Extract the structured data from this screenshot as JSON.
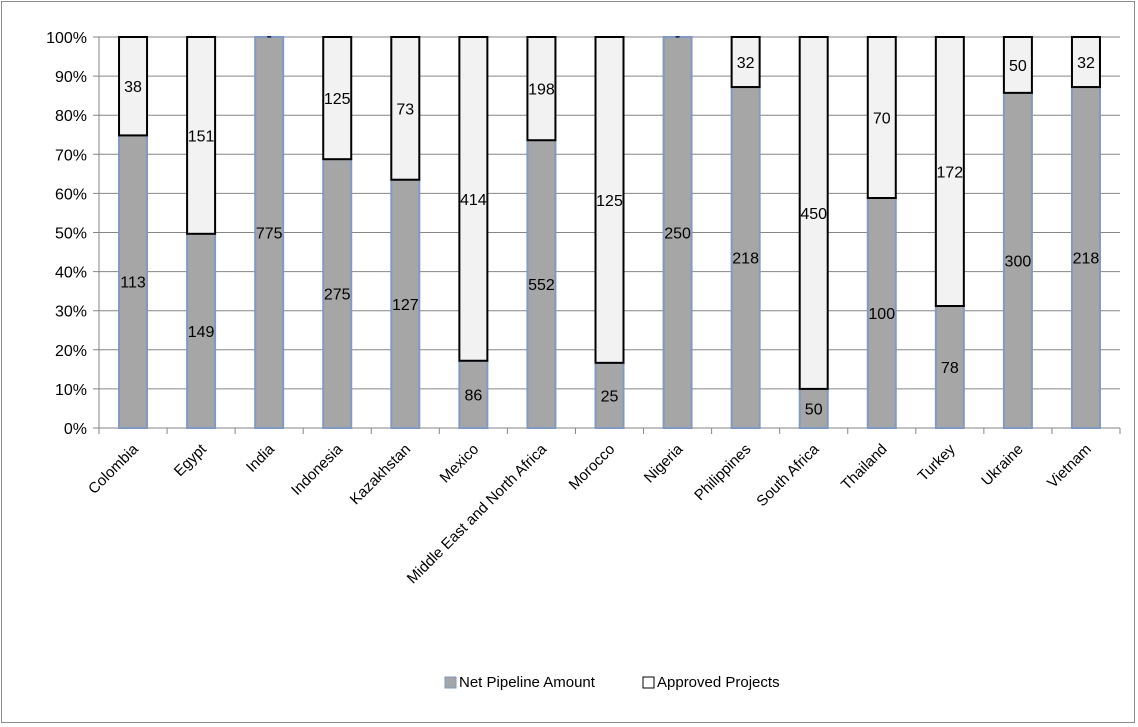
{
  "chart_data": {
    "type": "bar",
    "stacked": "percent",
    "categories": [
      "Colombia",
      "Egypt",
      "India",
      "Indonesia",
      "Kazakhstan",
      "Mexico",
      "Middle East and North Africa",
      "Morocco",
      "Nigeria",
      "Philippines",
      "South Africa",
      "Thailand",
      "Turkey",
      "Ukraine",
      "Vietnam"
    ],
    "series": [
      {
        "name": "Net Pipeline Amount",
        "color": "#a6a6a6",
        "border": "#7f9ac4",
        "values": [
          113,
          149,
          775,
          275,
          127,
          86,
          552,
          25,
          250,
          218,
          50,
          100,
          78,
          300,
          218
        ],
        "labels": [
          "113",
          "149",
          "775",
          "275",
          "127",
          "86",
          "552",
          "25",
          "250",
          "218",
          "50",
          "100",
          "78",
          "300",
          "218"
        ]
      },
      {
        "name": "Approved Projects",
        "color": "#f2f2f2",
        "border": "#000000",
        "values": [
          38,
          151,
          0,
          125,
          73,
          414,
          198,
          125,
          0,
          32,
          450,
          70,
          172,
          50,
          32
        ],
        "labels": [
          "38",
          "151",
          "-",
          "125",
          "73",
          "414",
          "198",
          "125",
          "-",
          "32",
          "450",
          "70",
          "172",
          "50",
          "32"
        ]
      }
    ],
    "yticks": [
      "0%",
      "10%",
      "20%",
      "30%",
      "40%",
      "50%",
      "60%",
      "70%",
      "80%",
      "90%",
      "100%"
    ],
    "ylim": [
      0,
      100
    ],
    "grid": true,
    "legend_position": "bottom"
  }
}
